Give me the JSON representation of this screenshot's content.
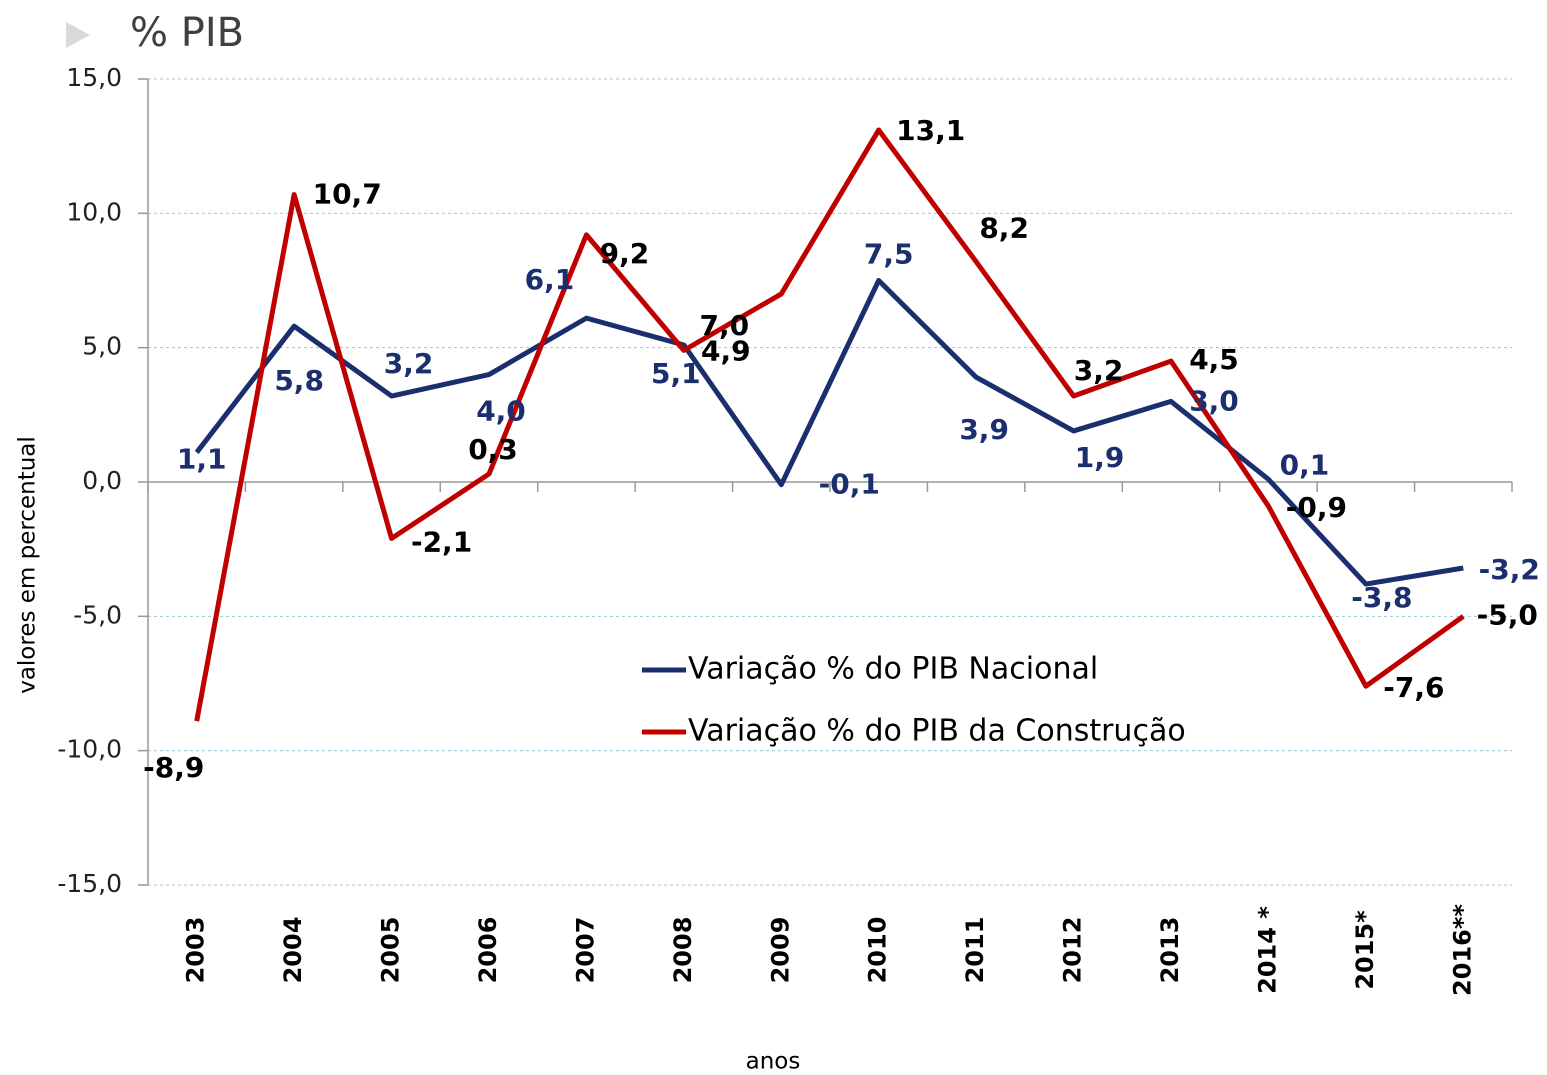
{
  "chart_data": {
    "type": "line",
    "title": "% PIB",
    "ylabel": "valores em percentual",
    "xlabel": "anos",
    "categories": [
      "2003",
      "2004",
      "2005",
      "2006",
      "2007",
      "2008",
      "2009",
      "2010",
      "2011",
      "2012",
      "2013",
      "2014 *",
      "2015*",
      "2016**"
    ],
    "series": [
      {
        "name": "Variação % do PIB Nacional",
        "color": "#1b2f6e",
        "values": [
          1.1,
          5.8,
          3.2,
          4.0,
          6.1,
          5.1,
          -0.1,
          7.5,
          3.9,
          1.9,
          3.0,
          0.1,
          -3.8,
          -3.2
        ],
        "value_labels": [
          "1,1",
          "5,8",
          "3,2",
          "4,0",
          "6,1",
          "5,1",
          "-0,1",
          "7,5",
          "3,9",
          "1,9",
          "3,0",
          "0,1",
          "-3,8",
          "-3,2"
        ]
      },
      {
        "name": "Variação % do PIB da Construção",
        "color": "#c00000",
        "values": [
          -8.9,
          10.7,
          -2.1,
          0.3,
          9.2,
          4.9,
          7.0,
          13.1,
          8.2,
          3.2,
          4.5,
          -0.9,
          -7.6,
          -5.0
        ],
        "value_labels": [
          "-8,9",
          "10,7",
          "-2,1",
          "0,3",
          "9,2",
          "4,9",
          "7,0",
          "13,1",
          "8,2",
          "3,2",
          "4,5",
          "-0,9",
          "-7,6",
          "-5,0"
        ]
      }
    ],
    "ylim": [
      -15,
      15
    ],
    "yticks": [
      {
        "value": -15,
        "label": "-15,0"
      },
      {
        "value": -10,
        "label": "-10,0"
      },
      {
        "value": -5,
        "label": "-5,0"
      },
      {
        "value": 0,
        "label": "0,0"
      },
      {
        "value": 5,
        "label": "5,0"
      },
      {
        "value": 10,
        "label": "10,0"
      },
      {
        "value": 15,
        "label": "15,0"
      }
    ],
    "grid": true
  }
}
